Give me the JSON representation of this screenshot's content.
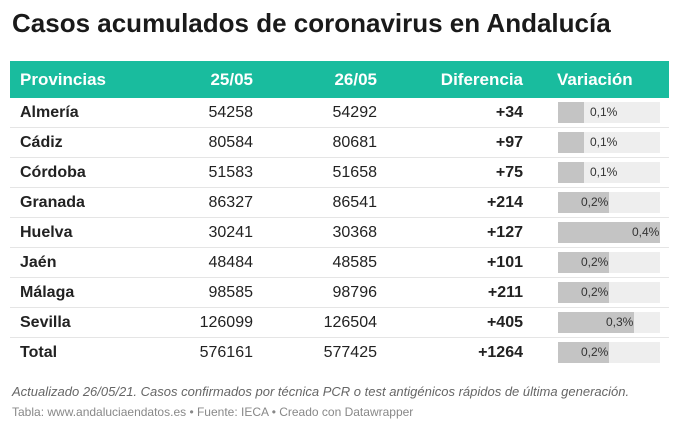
{
  "title": "Casos acumulados de coronavirus en Andalucía",
  "headers": {
    "provincias": "Provincias",
    "col_a": "25/05",
    "col_b": "26/05",
    "diferencia": "Diferencia",
    "variacion": "Variación"
  },
  "rows": [
    {
      "provincia": "Almería",
      "a": "54258",
      "b": "54292",
      "diferencia": "+34",
      "variacion": "0,1%",
      "variacion_value": 0.1
    },
    {
      "provincia": "Cádiz",
      "a": "80584",
      "b": "80681",
      "diferencia": "+97",
      "variacion": "0,1%",
      "variacion_value": 0.1
    },
    {
      "provincia": "Córdoba",
      "a": "51583",
      "b": "51658",
      "diferencia": "+75",
      "variacion": "0,1%",
      "variacion_value": 0.1
    },
    {
      "provincia": "Granada",
      "a": "86327",
      "b": "86541",
      "diferencia": "+214",
      "variacion": "0,2%",
      "variacion_value": 0.2
    },
    {
      "provincia": "Huelva",
      "a": "30241",
      "b": "30368",
      "diferencia": "+127",
      "variacion": "0,4%",
      "variacion_value": 0.4
    },
    {
      "provincia": "Jaén",
      "a": "48484",
      "b": "48585",
      "diferencia": "+101",
      "variacion": "0,2%",
      "variacion_value": 0.2
    },
    {
      "provincia": "Málaga",
      "a": "98585",
      "b": "98796",
      "diferencia": "+211",
      "variacion": "0,2%",
      "variacion_value": 0.2
    },
    {
      "provincia": "Sevilla",
      "a": "126099",
      "b": "126504",
      "diferencia": "+405",
      "variacion": "0,3%",
      "variacion_value": 0.3
    },
    {
      "provincia": "Total",
      "a": "576161",
      "b": "577425",
      "diferencia": "+1264",
      "variacion": "0,2%",
      "variacion_value": 0.2
    }
  ],
  "variacion_max": 0.4,
  "note": "Actualizado 26/05/21. Casos confirmados por técnica PCR o test antigénicos rápidos de última generación.",
  "source": "Tabla: www.andaluciaendatos.es • Fuente: IECA • Creado con Datawrapper",
  "colors": {
    "header_bg": "#19bc9e",
    "bar_fill": "#c4c4c4",
    "bar_track": "#eeeeee"
  }
}
